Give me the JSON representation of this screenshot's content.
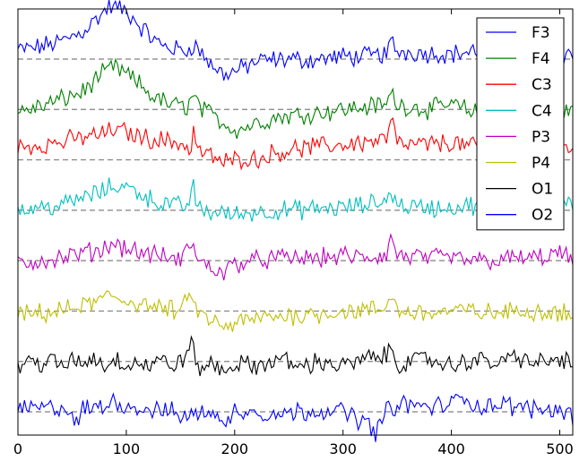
{
  "chart_data": {
    "type": "line",
    "title": "",
    "xlabel": "",
    "ylabel": "",
    "xlim": [
      0,
      512
    ],
    "xticks": [
      0,
      100,
      200,
      300,
      400,
      500
    ],
    "yticks": [],
    "grid": false,
    "legend_position": "top-right",
    "baseline_style": "dashed-gray",
    "channel_spacing": 1,
    "series": [
      {
        "name": "F3",
        "color": "#0000ff",
        "offset": 7,
        "points": [
          [
            0,
            7.18
          ],
          [
            20,
            7.24
          ],
          [
            40,
            7.35
          ],
          [
            60,
            7.55
          ],
          [
            75,
            7.85
          ],
          [
            85,
            8.05
          ],
          [
            95,
            8.0
          ],
          [
            105,
            7.85
          ],
          [
            115,
            7.6
          ],
          [
            130,
            7.3
          ],
          [
            145,
            7.2
          ],
          [
            155,
            7.15
          ],
          [
            162,
            7.3
          ],
          [
            170,
            7.1
          ],
          [
            180,
            6.85
          ],
          [
            190,
            6.7
          ],
          [
            200,
            6.75
          ],
          [
            210,
            6.85
          ],
          [
            220,
            6.95
          ],
          [
            230,
            6.98
          ],
          [
            250,
            7.0
          ],
          [
            270,
            6.98
          ],
          [
            300,
            7.05
          ],
          [
            320,
            7.05
          ],
          [
            340,
            7.1
          ],
          [
            345,
            7.35
          ],
          [
            350,
            7.15
          ],
          [
            380,
            7.12
          ],
          [
            400,
            7.1
          ],
          [
            420,
            7.15
          ],
          [
            440,
            7.15
          ],
          [
            460,
            7.12
          ],
          [
            480,
            7.12
          ],
          [
            500,
            7.14
          ],
          [
            512,
            7.1
          ]
        ]
      },
      {
        "name": "F4",
        "color": "#008000",
        "offset": 6,
        "points": [
          [
            0,
            5.95
          ],
          [
            20,
            6.05
          ],
          [
            40,
            6.2
          ],
          [
            60,
            6.35
          ],
          [
            75,
            6.65
          ],
          [
            88,
            6.85
          ],
          [
            100,
            6.7
          ],
          [
            112,
            6.5
          ],
          [
            125,
            6.25
          ],
          [
            140,
            6.1
          ],
          [
            155,
            6.05
          ],
          [
            162,
            6.25
          ],
          [
            170,
            6.0
          ],
          [
            185,
            5.8
          ],
          [
            200,
            5.6
          ],
          [
            210,
            5.65
          ],
          [
            222,
            5.75
          ],
          [
            240,
            5.85
          ],
          [
            260,
            5.9
          ],
          [
            280,
            5.95
          ],
          [
            300,
            6.0
          ],
          [
            320,
            6.05
          ],
          [
            340,
            6.1
          ],
          [
            345,
            6.35
          ],
          [
            350,
            6.1
          ],
          [
            380,
            6.0
          ],
          [
            400,
            6.1
          ],
          [
            420,
            5.95
          ],
          [
            440,
            6.0
          ],
          [
            460,
            5.95
          ],
          [
            480,
            5.95
          ],
          [
            500,
            6.02
          ],
          [
            512,
            5.95
          ]
        ]
      },
      {
        "name": "C3",
        "color": "#ff0000",
        "offset": 5,
        "points": [
          [
            0,
            5.25
          ],
          [
            20,
            5.3
          ],
          [
            40,
            5.35
          ],
          [
            60,
            5.45
          ],
          [
            75,
            5.5
          ],
          [
            90,
            5.6
          ],
          [
            100,
            5.55
          ],
          [
            115,
            5.45
          ],
          [
            130,
            5.4
          ],
          [
            145,
            5.35
          ],
          [
            155,
            5.3
          ],
          [
            160,
            5.1
          ],
          [
            162,
            5.7
          ],
          [
            165,
            5.2
          ],
          [
            180,
            5.05
          ],
          [
            190,
            4.95
          ],
          [
            200,
            5.0
          ],
          [
            210,
            5.05
          ],
          [
            220,
            5.0
          ],
          [
            230,
            5.1
          ],
          [
            250,
            5.2
          ],
          [
            270,
            5.25
          ],
          [
            300,
            5.3
          ],
          [
            320,
            5.35
          ],
          [
            340,
            5.4
          ],
          [
            345,
            5.85
          ],
          [
            350,
            5.3
          ],
          [
            380,
            5.3
          ],
          [
            400,
            5.35
          ],
          [
            420,
            5.25
          ],
          [
            440,
            5.3
          ],
          [
            460,
            5.35
          ],
          [
            480,
            5.4
          ],
          [
            500,
            5.35
          ],
          [
            512,
            5.3
          ]
        ]
      },
      {
        "name": "C4",
        "color": "#00bfbf",
        "offset": 4,
        "points": [
          [
            0,
            4.0
          ],
          [
            20,
            4.05
          ],
          [
            40,
            4.1
          ],
          [
            60,
            4.25
          ],
          [
            75,
            4.35
          ],
          [
            90,
            4.5
          ],
          [
            100,
            4.45
          ],
          [
            110,
            4.38
          ],
          [
            120,
            4.25
          ],
          [
            130,
            4.15
          ],
          [
            145,
            4.1
          ],
          [
            155,
            4.05
          ],
          [
            162,
            4.45
          ],
          [
            165,
            4.05
          ],
          [
            180,
            3.95
          ],
          [
            190,
            3.95
          ],
          [
            200,
            3.9
          ],
          [
            210,
            3.95
          ],
          [
            230,
            3.98
          ],
          [
            250,
            4.0
          ],
          [
            270,
            4.02
          ],
          [
            300,
            4.05
          ],
          [
            320,
            4.1
          ],
          [
            340,
            4.2
          ],
          [
            345,
            4.4
          ],
          [
            350,
            4.1
          ],
          [
            380,
            4.05
          ],
          [
            400,
            4.05
          ],
          [
            420,
            4.1
          ],
          [
            440,
            4.05
          ],
          [
            460,
            4.05
          ],
          [
            480,
            4.1
          ],
          [
            500,
            4.05
          ],
          [
            512,
            4.08
          ]
        ]
      },
      {
        "name": "P3",
        "color": "#bf00bf",
        "offset": 3,
        "points": [
          [
            0,
            2.95
          ],
          [
            20,
            3.0
          ],
          [
            40,
            3.05
          ],
          [
            60,
            3.15
          ],
          [
            75,
            3.2
          ],
          [
            88,
            3.35
          ],
          [
            100,
            3.25
          ],
          [
            115,
            3.15
          ],
          [
            130,
            3.1
          ],
          [
            150,
            3.0
          ],
          [
            162,
            3.42
          ],
          [
            165,
            3.0
          ],
          [
            180,
            2.85
          ],
          [
            190,
            2.75
          ],
          [
            200,
            2.95
          ],
          [
            220,
            3.0
          ],
          [
            240,
            3.05
          ],
          [
            260,
            3.05
          ],
          [
            280,
            3.05
          ],
          [
            300,
            3.1
          ],
          [
            320,
            3.05
          ],
          [
            340,
            3.1
          ],
          [
            345,
            3.5
          ],
          [
            350,
            3.1
          ],
          [
            380,
            3.05
          ],
          [
            400,
            3.05
          ],
          [
            420,
            3.0
          ],
          [
            440,
            3.0
          ],
          [
            460,
            3.05
          ],
          [
            480,
            3.05
          ],
          [
            500,
            3.15
          ],
          [
            512,
            3.0
          ]
        ]
      },
      {
        "name": "P4",
        "color": "#bfbf00",
        "offset": 2,
        "points": [
          [
            0,
            1.9
          ],
          [
            20,
            1.95
          ],
          [
            40,
            2.0
          ],
          [
            60,
            2.1
          ],
          [
            75,
            2.2
          ],
          [
            85,
            2.3
          ],
          [
            100,
            2.2
          ],
          [
            115,
            2.15
          ],
          [
            130,
            2.05
          ],
          [
            150,
            2.0
          ],
          [
            162,
            2.35
          ],
          [
            165,
            1.95
          ],
          [
            180,
            1.8
          ],
          [
            190,
            1.65
          ],
          [
            200,
            1.75
          ],
          [
            220,
            1.85
          ],
          [
            240,
            1.9
          ],
          [
            260,
            1.92
          ],
          [
            280,
            1.95
          ],
          [
            300,
            2.0
          ],
          [
            320,
            2.0
          ],
          [
            340,
            2.05
          ],
          [
            345,
            2.4
          ],
          [
            350,
            2.0
          ],
          [
            380,
            1.95
          ],
          [
            400,
            2.0
          ],
          [
            420,
            2.0
          ],
          [
            440,
            1.95
          ],
          [
            460,
            2.0
          ],
          [
            480,
            2.0
          ],
          [
            500,
            2.0
          ],
          [
            512,
            1.9
          ]
        ]
      },
      {
        "name": "O1",
        "color": "#000000",
        "offset": 1,
        "points": [
          [
            0,
            0.9
          ],
          [
            10,
            1.0
          ],
          [
            20,
            0.95
          ],
          [
            30,
            1.05
          ],
          [
            40,
            0.85
          ],
          [
            50,
            1.05
          ],
          [
            60,
            0.95
          ],
          [
            70,
            1.1
          ],
          [
            80,
            0.9
          ],
          [
            90,
            1.05
          ],
          [
            100,
            0.95
          ],
          [
            110,
            1.0
          ],
          [
            120,
            0.9
          ],
          [
            130,
            1.05
          ],
          [
            140,
            0.9
          ],
          [
            150,
            1.0
          ],
          [
            162,
            1.35
          ],
          [
            165,
            0.85
          ],
          [
            180,
            0.95
          ],
          [
            190,
            0.8
          ],
          [
            200,
            0.95
          ],
          [
            220,
            0.9
          ],
          [
            240,
            1.05
          ],
          [
            260,
            0.9
          ],
          [
            280,
            1.0
          ],
          [
            300,
            0.9
          ],
          [
            320,
            1.05
          ],
          [
            340,
            1.1
          ],
          [
            345,
            1.3
          ],
          [
            350,
            0.95
          ],
          [
            380,
            1.05
          ],
          [
            400,
            0.9
          ],
          [
            420,
            1.05
          ],
          [
            440,
            0.95
          ],
          [
            460,
            1.1
          ],
          [
            480,
            0.95
          ],
          [
            500,
            1.05
          ],
          [
            512,
            0.95
          ]
        ]
      },
      {
        "name": "O2",
        "color": "#0000ff",
        "offset": 0,
        "points": [
          [
            0,
            0.0
          ],
          [
            10,
            0.1
          ],
          [
            20,
            0.05
          ],
          [
            40,
            0.1
          ],
          [
            50,
            -0.05
          ],
          [
            55,
            -0.3
          ],
          [
            60,
            0.05
          ],
          [
            80,
            0.1
          ],
          [
            90,
            0.25
          ],
          [
            100,
            0.1
          ],
          [
            120,
            0.05
          ],
          [
            140,
            0.0
          ],
          [
            160,
            -0.1
          ],
          [
            170,
            0.0
          ],
          [
            180,
            0.05
          ],
          [
            190,
            -0.35
          ],
          [
            200,
            0.05
          ],
          [
            220,
            0.0
          ],
          [
            240,
            -0.05
          ],
          [
            260,
            0.0
          ],
          [
            280,
            0.05
          ],
          [
            300,
            0.0
          ],
          [
            320,
            -0.2
          ],
          [
            330,
            -0.4
          ],
          [
            340,
            0.0
          ],
          [
            350,
            0.15
          ],
          [
            380,
            0.1
          ],
          [
            400,
            0.15
          ],
          [
            415,
            0.35
          ],
          [
            420,
            0.1
          ],
          [
            440,
            0.15
          ],
          [
            460,
            0.1
          ],
          [
            480,
            0.05
          ],
          [
            500,
            0.05
          ],
          [
            512,
            -0.1
          ]
        ]
      }
    ]
  }
}
